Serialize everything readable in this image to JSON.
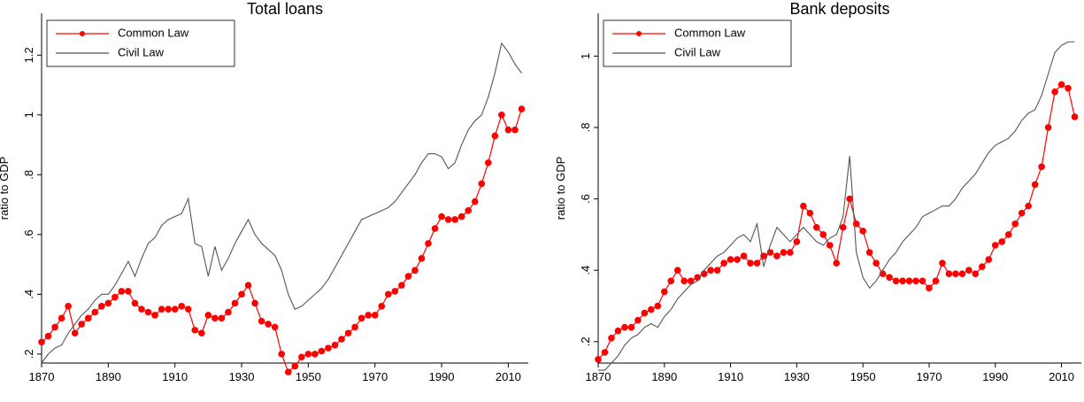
{
  "chart_data": [
    {
      "type": "line",
      "title": "Total loans",
      "y_label": "ratio to GDP",
      "legend": "upper left",
      "grid": false,
      "x": [
        1870,
        1872,
        1874,
        1876,
        1878,
        1880,
        1882,
        1884,
        1886,
        1888,
        1890,
        1892,
        1894,
        1896,
        1898,
        1900,
        1902,
        1904,
        1906,
        1908,
        1910,
        1912,
        1914,
        1916,
        1918,
        1920,
        1922,
        1924,
        1926,
        1928,
        1930,
        1932,
        1934,
        1936,
        1938,
        1940,
        1942,
        1944,
        1946,
        1948,
        1950,
        1952,
        1954,
        1956,
        1958,
        1960,
        1962,
        1964,
        1966,
        1968,
        1970,
        1972,
        1974,
        1976,
        1978,
        1980,
        1982,
        1984,
        1986,
        1988,
        1990,
        1992,
        1994,
        1996,
        1998,
        2000,
        2002,
        2004,
        2006,
        2008,
        2010,
        2012,
        2014
      ],
      "series": [
        {
          "name": "Common Law",
          "color": "#ff0000",
          "markers": true,
          "values": [
            0.24,
            0.26,
            0.29,
            0.32,
            0.36,
            0.27,
            0.3,
            0.32,
            0.34,
            0.36,
            0.37,
            0.39,
            0.41,
            0.41,
            0.37,
            0.35,
            0.34,
            0.33,
            0.35,
            0.35,
            0.35,
            0.36,
            0.35,
            0.28,
            0.27,
            0.33,
            0.32,
            0.32,
            0.34,
            0.37,
            0.4,
            0.43,
            0.37,
            0.31,
            0.3,
            0.29,
            0.2,
            0.14,
            0.16,
            0.19,
            0.2,
            0.2,
            0.21,
            0.22,
            0.23,
            0.25,
            0.27,
            0.29,
            0.32,
            0.33,
            0.33,
            0.36,
            0.4,
            0.41,
            0.43,
            0.46,
            0.48,
            0.52,
            0.57,
            0.62,
            0.66,
            0.65,
            0.65,
            0.66,
            0.68,
            0.71,
            0.77,
            0.84,
            0.93,
            1.0,
            0.95,
            0.95,
            1.02
          ]
        },
        {
          "name": "Civil Law",
          "color": "#555555",
          "markers": false,
          "values": [
            0.17,
            0.2,
            0.22,
            0.23,
            0.27,
            0.3,
            0.33,
            0.35,
            0.38,
            0.4,
            0.4,
            0.43,
            0.47,
            0.51,
            0.46,
            0.52,
            0.57,
            0.59,
            0.63,
            0.65,
            0.66,
            0.67,
            0.72,
            0.57,
            0.56,
            0.46,
            0.56,
            0.48,
            0.52,
            0.57,
            0.61,
            0.65,
            0.6,
            0.57,
            0.55,
            0.53,
            0.48,
            0.4,
            0.35,
            0.36,
            0.38,
            0.4,
            0.42,
            0.45,
            0.49,
            0.53,
            0.57,
            0.61,
            0.65,
            0.66,
            0.67,
            0.68,
            0.69,
            0.71,
            0.74,
            0.77,
            0.8,
            0.84,
            0.87,
            0.87,
            0.86,
            0.82,
            0.84,
            0.9,
            0.95,
            0.98,
            1.0,
            1.06,
            1.14,
            1.24,
            1.21,
            1.17,
            1.14
          ]
        }
      ],
      "xlim": [
        1870,
        2016
      ],
      "xticks": [
        1870,
        1890,
        1910,
        1930,
        1950,
        1970,
        1990,
        2010
      ],
      "ylim": [
        0.17,
        1.34
      ],
      "yticks": [
        {
          "value": 0.2,
          "label": ".2"
        },
        {
          "value": 0.4,
          "label": ".4"
        },
        {
          "value": 0.6,
          "label": ".6"
        },
        {
          "value": 0.8,
          "label": ".8"
        },
        1,
        {
          "value": 1.2,
          "label": "1.2"
        }
      ]
    },
    {
      "type": "line",
      "title": "Bank deposits",
      "y_label": "ratio to GDP",
      "legend": "upper left",
      "grid": false,
      "x": [
        1870,
        1872,
        1874,
        1876,
        1878,
        1880,
        1882,
        1884,
        1886,
        1888,
        1890,
        1892,
        1894,
        1896,
        1898,
        1900,
        1902,
        1904,
        1906,
        1908,
        1910,
        1912,
        1914,
        1916,
        1918,
        1920,
        1922,
        1924,
        1926,
        1928,
        1930,
        1932,
        1934,
        1936,
        1938,
        1940,
        1942,
        1944,
        1946,
        1948,
        1950,
        1952,
        1954,
        1956,
        1958,
        1960,
        1962,
        1964,
        1966,
        1968,
        1970,
        1972,
        1974,
        1976,
        1978,
        1980,
        1982,
        1984,
        1986,
        1988,
        1990,
        1992,
        1994,
        1996,
        1998,
        2000,
        2002,
        2004,
        2006,
        2008,
        2010,
        2012,
        2014
      ],
      "series": [
        {
          "name": "Common Law",
          "color": "#ff0000",
          "markers": true,
          "values": [
            0.15,
            0.17,
            0.21,
            0.23,
            0.24,
            0.24,
            0.26,
            0.28,
            0.29,
            0.3,
            0.34,
            0.37,
            0.4,
            0.37,
            0.37,
            0.38,
            0.39,
            0.4,
            0.4,
            0.42,
            0.43,
            0.43,
            0.44,
            0.42,
            0.42,
            0.44,
            0.45,
            0.44,
            0.45,
            0.45,
            0.48,
            0.58,
            0.56,
            0.52,
            0.5,
            0.47,
            0.42,
            0.52,
            0.6,
            0.53,
            0.51,
            0.45,
            0.42,
            0.39,
            0.38,
            0.37,
            0.37,
            0.37,
            0.37,
            0.37,
            0.35,
            0.37,
            0.42,
            0.39,
            0.39,
            0.39,
            0.4,
            0.39,
            0.41,
            0.43,
            0.47,
            0.48,
            0.5,
            0.53,
            0.56,
            0.58,
            0.64,
            0.69,
            0.8,
            0.9,
            0.92,
            0.91,
            0.83
          ]
        },
        {
          "name": "Civil Law",
          "color": "#555555",
          "markers": false,
          "values": [
            0.12,
            0.12,
            0.14,
            0.16,
            0.19,
            0.21,
            0.22,
            0.24,
            0.25,
            0.24,
            0.27,
            0.29,
            0.32,
            0.34,
            0.36,
            0.37,
            0.4,
            0.42,
            0.44,
            0.45,
            0.47,
            0.49,
            0.5,
            0.48,
            0.53,
            0.41,
            0.47,
            0.52,
            0.5,
            0.48,
            0.5,
            0.52,
            0.5,
            0.48,
            0.47,
            0.49,
            0.5,
            0.55,
            0.72,
            0.45,
            0.38,
            0.35,
            0.37,
            0.4,
            0.43,
            0.45,
            0.48,
            0.5,
            0.52,
            0.55,
            0.56,
            0.57,
            0.58,
            0.58,
            0.6,
            0.63,
            0.65,
            0.67,
            0.7,
            0.73,
            0.75,
            0.76,
            0.77,
            0.79,
            0.82,
            0.84,
            0.85,
            0.89,
            0.95,
            1.01,
            1.03,
            1.04,
            1.04
          ]
        }
      ],
      "xlim": [
        1870,
        2016
      ],
      "xticks": [
        1870,
        1890,
        1910,
        1930,
        1950,
        1970,
        1990,
        2010
      ],
      "ylim": [
        0.14,
        1.12
      ],
      "yticks": [
        {
          "value": 0.2,
          "label": ".2"
        },
        {
          "value": 0.4,
          "label": ".4"
        },
        {
          "value": 0.6,
          "label": ".6"
        },
        {
          "value": 0.8,
          "label": ".8"
        },
        1
      ]
    }
  ]
}
